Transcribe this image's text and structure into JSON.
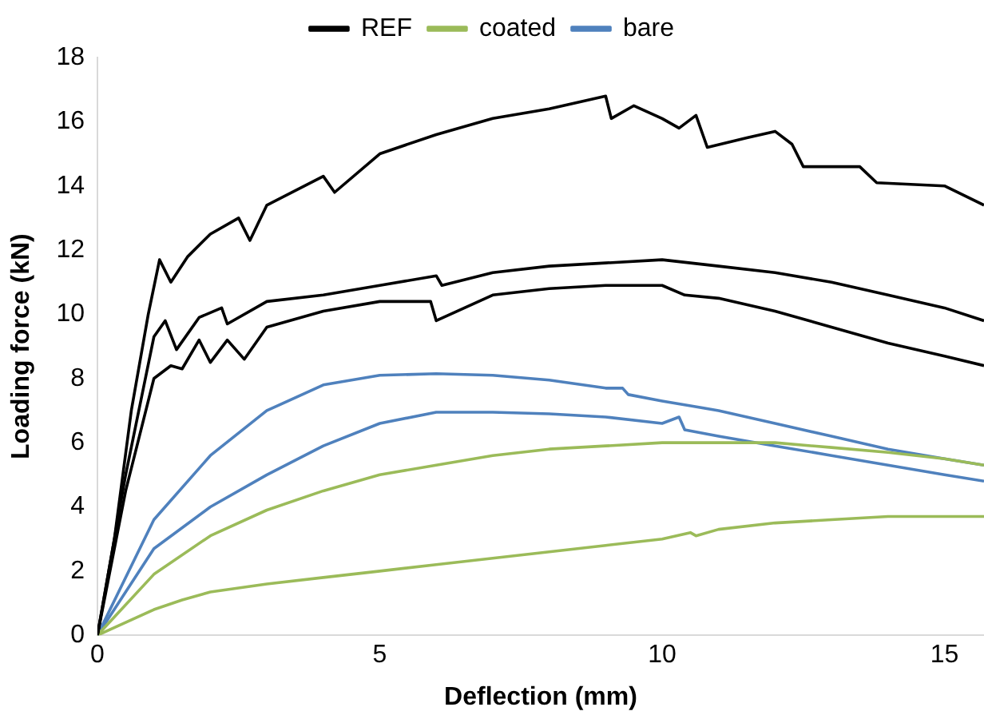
{
  "chart_data": {
    "type": "line",
    "xlabel": "Deflection (mm)",
    "ylabel": "Loading force (kN)",
    "xlim": [
      0,
      15.7
    ],
    "xticks": [
      0,
      5,
      10,
      15
    ],
    "ylim": [
      0,
      18
    ],
    "yticks": [
      0,
      2,
      4,
      6,
      8,
      10,
      12,
      14,
      16,
      18
    ],
    "grid": false,
    "legend": "top",
    "marker": "none",
    "line_style": "solid",
    "series": [
      {
        "name": "REF",
        "color": "#000000",
        "x": [
          0,
          0.3,
          0.6,
          0.9,
          1.1,
          1.3,
          1.6,
          2,
          2.5,
          2.7,
          3,
          4,
          4.2,
          5,
          6,
          7,
          8,
          9,
          9.1,
          9.5,
          10,
          10.3,
          10.6,
          10.8,
          11.5,
          12,
          12.3,
          12.5,
          13.5,
          13.8,
          15,
          15.7
        ],
        "values": [
          0,
          3,
          7,
          10,
          11.7,
          11,
          11.8,
          12.5,
          13,
          12.3,
          13.4,
          14.3,
          13.8,
          15,
          15.6,
          16.1,
          16.4,
          16.8,
          16.1,
          16.5,
          16.1,
          15.8,
          16.2,
          15.2,
          15.5,
          15.7,
          15.3,
          14.6,
          14.6,
          14.1,
          14,
          13.4
        ]
      },
      {
        "color": "#000000",
        "x": [
          0,
          0.5,
          1,
          1.2,
          1.4,
          1.8,
          2.2,
          2.3,
          3,
          4,
          5,
          6,
          6.1,
          7,
          8,
          9,
          10,
          11,
          12,
          13,
          14,
          15,
          15.7
        ],
        "values": [
          0,
          5,
          9.3,
          9.8,
          8.9,
          9.9,
          10.2,
          9.7,
          10.4,
          10.6,
          10.9,
          11.2,
          10.9,
          11.3,
          11.5,
          11.6,
          11.7,
          11.5,
          11.3,
          11,
          10.6,
          10.2,
          9.8
        ]
      },
      {
        "color": "#000000",
        "x": [
          0,
          0.5,
          1,
          1.3,
          1.5,
          1.8,
          2,
          2.3,
          2.6,
          3,
          4,
          5,
          5.9,
          6,
          7,
          8,
          9,
          10,
          10.4,
          11,
          12,
          13,
          14,
          15,
          15.7
        ],
        "values": [
          0,
          4.5,
          8,
          8.4,
          8.3,
          9.2,
          8.5,
          9.2,
          8.6,
          9.6,
          10.1,
          10.4,
          10.4,
          9.8,
          10.6,
          10.8,
          10.9,
          10.9,
          10.6,
          10.5,
          10.1,
          9.6,
          9.1,
          8.7,
          8.4
        ]
      },
      {
        "name": "coated",
        "color": "#9bbb59",
        "x": [
          0,
          1,
          2,
          3,
          4,
          5,
          6,
          7,
          8,
          9,
          10,
          11,
          12,
          13,
          14,
          15,
          15.7
        ],
        "values": [
          0,
          1.9,
          3.1,
          3.9,
          4.5,
          5,
          5.3,
          5.6,
          5.8,
          5.9,
          6,
          6,
          6,
          5.85,
          5.7,
          5.5,
          5.3
        ]
      },
      {
        "color": "#9bbb59",
        "x": [
          0,
          0.5,
          1,
          1.5,
          2,
          3,
          4,
          5,
          6,
          7,
          8,
          9,
          10,
          10.5,
          10.6,
          11,
          12,
          13,
          14,
          15,
          15.7
        ],
        "values": [
          0,
          0.4,
          0.8,
          1.1,
          1.35,
          1.6,
          1.8,
          2,
          2.2,
          2.4,
          2.6,
          2.8,
          3,
          3.2,
          3.1,
          3.3,
          3.5,
          3.6,
          3.7,
          3.7,
          3.7
        ]
      },
      {
        "name": "bare",
        "color": "#4f81bd",
        "x": [
          0,
          1,
          2,
          3,
          4,
          5,
          6,
          7,
          8,
          9,
          9.3,
          9.4,
          10,
          11,
          12,
          13,
          14,
          15,
          15.7
        ],
        "values": [
          0,
          3.6,
          5.6,
          7,
          7.8,
          8.1,
          8.15,
          8.1,
          7.95,
          7.7,
          7.7,
          7.5,
          7.3,
          7,
          6.6,
          6.2,
          5.8,
          5.5,
          5.3
        ]
      },
      {
        "color": "#4f81bd",
        "x": [
          0,
          1,
          2,
          3,
          4,
          5,
          6,
          7,
          8,
          9,
          10,
          10.3,
          10.4,
          11,
          12,
          13,
          14,
          15,
          15.7
        ],
        "values": [
          0,
          2.7,
          4,
          5,
          5.9,
          6.6,
          6.95,
          6.95,
          6.9,
          6.8,
          6.6,
          6.8,
          6.4,
          6.2,
          5.9,
          5.6,
          5.3,
          5.0,
          4.8
        ]
      }
    ]
  }
}
